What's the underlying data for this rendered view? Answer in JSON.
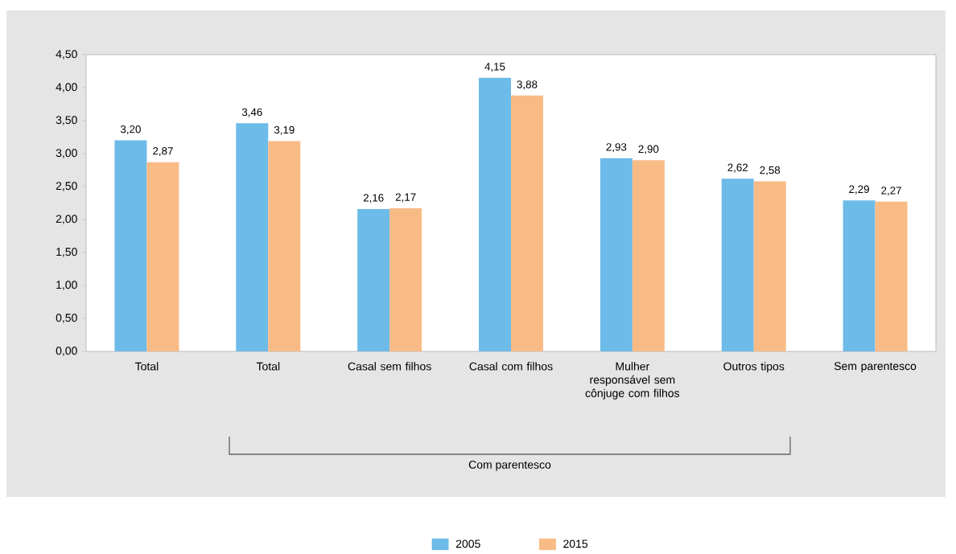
{
  "chart_data": {
    "type": "bar",
    "categories": [
      "Total",
      "Total",
      "Casal sem filhos",
      "Casal com filhos",
      "Mulher responsável sem cônjuge com filhos",
      "Outros tipos",
      "Sem parentesco"
    ],
    "series": [
      {
        "name": "2005",
        "color": "#6dbbe8",
        "values": [
          3.2,
          3.46,
          2.16,
          4.15,
          2.93,
          2.62,
          2.29
        ],
        "value_labels": [
          "3,20",
          "3,46",
          "2,16",
          "4,15",
          "2,93",
          "2,62",
          "2,29"
        ]
      },
      {
        "name": "2015",
        "color": "#f9bb86",
        "values": [
          2.87,
          3.19,
          2.17,
          3.88,
          2.9,
          2.58,
          2.27
        ],
        "value_labels": [
          "2,87",
          "3,19",
          "2,17",
          "3,88",
          "2,90",
          "2,58",
          "2,27"
        ]
      }
    ],
    "ylim": [
      0,
      4.5
    ],
    "yticks": [
      {
        "value": 0,
        "label": "0,00"
      },
      {
        "value": 0.5,
        "label": "0,50"
      },
      {
        "value": 1,
        "label": "1,00"
      },
      {
        "value": 1.5,
        "label": "1,50"
      },
      {
        "value": 2,
        "label": "2,00"
      },
      {
        "value": 2.5,
        "label": "2,50"
      },
      {
        "value": 3,
        "label": "3,00"
      },
      {
        "value": 3.5,
        "label": "3,50"
      },
      {
        "value": 4,
        "label": "4,00"
      },
      {
        "value": 4.5,
        "label": "4,50"
      }
    ],
    "annotations": [
      "Com parentesco"
    ],
    "grid": false,
    "legend": "bottom"
  }
}
